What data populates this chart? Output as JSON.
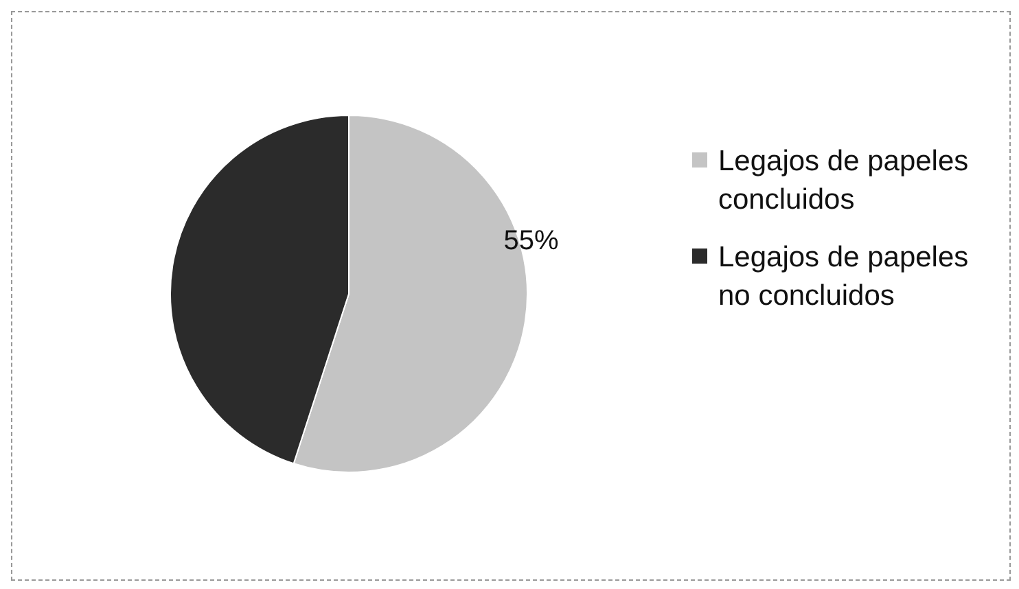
{
  "chart_data": {
    "type": "pie",
    "categories": [
      "Legajos de papeles concluidos",
      "Legajos de papeles no concluidos"
    ],
    "values": [
      55,
      45
    ],
    "colors": [
      "#c4c4c4",
      "#2b2b2b"
    ],
    "value_labels": [
      "55%",
      null
    ],
    "legend": "right"
  }
}
